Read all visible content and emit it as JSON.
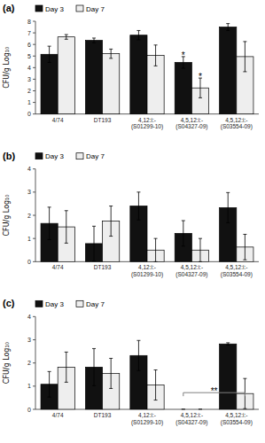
{
  "chart_data": [
    {
      "type": "bar",
      "title": "(a)",
      "ylabel": "CFU/g Log₁₀",
      "categories": [
        "4/74",
        "DT193",
        "4,12:i:-\n(S01299-10)",
        "4,5,12:i:-\n(S04327-09)",
        "4,5,12:i:-\n(S03554-09)"
      ],
      "series": [
        {
          "name": "Day 3",
          "color": "#111111",
          "values": [
            5.15,
            6.35,
            6.8,
            4.45,
            7.5
          ],
          "errors": [
            0.7,
            0.2,
            0.4,
            0.5,
            0.3
          ]
        },
        {
          "name": "Day 7",
          "color": "#eeeeee",
          "values": [
            6.65,
            5.2,
            5.05,
            2.25,
            4.95
          ],
          "errors": [
            0.2,
            0.4,
            0.9,
            0.85,
            1.3
          ]
        }
      ],
      "edge_color": "#000000",
      "ylim": [
        0,
        8
      ],
      "yticks": [
        0,
        1,
        2,
        3,
        4,
        5,
        6,
        7,
        8
      ],
      "legend": "upper left",
      "grid": false,
      "annotations": [
        {
          "text": "*",
          "category": 3,
          "series": 0
        },
        {
          "text": "*",
          "category": 3,
          "series": 1
        }
      ]
    },
    {
      "type": "bar",
      "title": "(b)",
      "ylabel": "CFU/g Log₁₀",
      "categories": [
        "4/74",
        "DT193",
        "4,12:i:-\n(S01299-10)",
        "4,5,12:i:-\n(S04327-09)",
        "4,5,12:i:-\n(S03554-09)"
      ],
      "series": [
        {
          "name": "Day 3",
          "color": "#111111",
          "values": [
            1.65,
            0.78,
            2.4,
            1.22,
            2.33
          ],
          "errors": [
            0.7,
            0.75,
            0.6,
            0.55,
            0.65
          ]
        },
        {
          "name": "Day 7",
          "color": "#eeeeee",
          "values": [
            1.5,
            1.75,
            0.5,
            0.5,
            0.63
          ],
          "errors": [
            0.7,
            0.65,
            0.5,
            0.5,
            0.55
          ]
        }
      ],
      "edge_color": "#000000",
      "ylim": [
        0,
        4
      ],
      "yticks": [
        0,
        1,
        2,
        3,
        4
      ],
      "legend": "upper left",
      "grid": false
    },
    {
      "type": "bar",
      "title": "(c)",
      "ylabel": "CFU/g Log₁₀",
      "categories": [
        "4/74",
        "DT193",
        "4,12:i:-\n(S01299-10)",
        "4,5,12:i:-\n(S04327-09)",
        "4,5,12:i:-\n(S03554-09)"
      ],
      "series": [
        {
          "name": "Day 3",
          "color": "#111111",
          "values": [
            1.08,
            1.82,
            2.32,
            0.0,
            2.82
          ],
          "errors": [
            0.55,
            0.8,
            0.65,
            0.0,
            0.05
          ]
        },
        {
          "name": "Day 7",
          "color": "#eeeeee",
          "values": [
            1.82,
            1.55,
            1.05,
            0.0,
            0.68
          ],
          "errors": [
            0.65,
            0.65,
            0.65,
            0.0,
            0.65
          ]
        }
      ],
      "edge_color": "#000000",
      "ylim": [
        0,
        4
      ],
      "yticks": [
        0,
        1,
        2,
        3,
        4
      ],
      "legend": "upper left",
      "grid": false,
      "bracket": {
        "text": "**",
        "y": 0.72,
        "from_category": 3,
        "to_category": 4
      }
    }
  ]
}
